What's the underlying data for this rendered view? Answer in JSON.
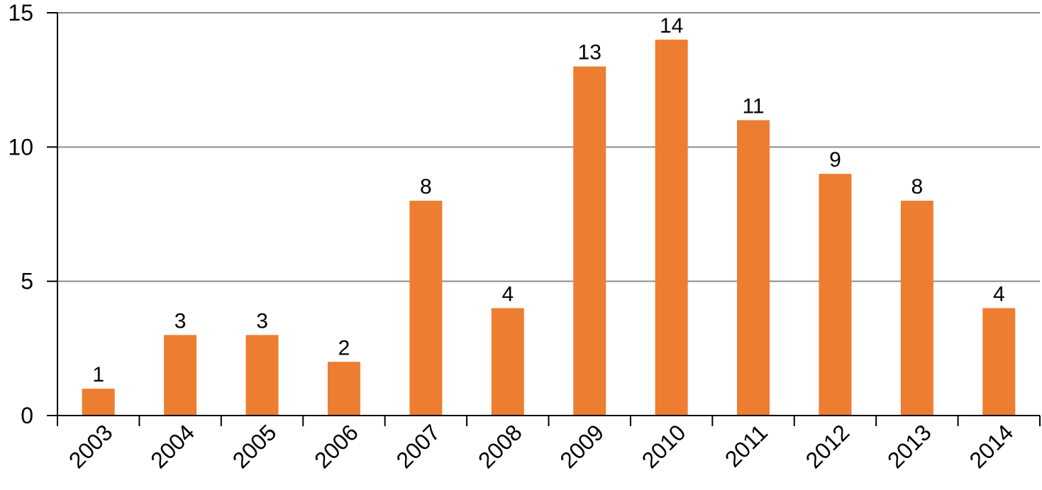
{
  "chart_data": {
    "type": "bar",
    "categories": [
      "2003",
      "2004",
      "2005",
      "2006",
      "2007",
      "2008",
      "2009",
      "2010",
      "2011",
      "2012",
      "2013",
      "2014"
    ],
    "values": [
      1,
      3,
      3,
      2,
      8,
      4,
      13,
      14,
      11,
      9,
      8,
      4
    ],
    "title": "",
    "xlabel": "",
    "ylabel": "",
    "ylim": [
      0,
      15
    ],
    "yticks": [
      "0",
      "5",
      "10",
      "15"
    ],
    "grid": true,
    "data_labels": true,
    "bar_color": "#ED7D31",
    "grid_color": "#8C8C8C",
    "axis_color": "#000000"
  }
}
